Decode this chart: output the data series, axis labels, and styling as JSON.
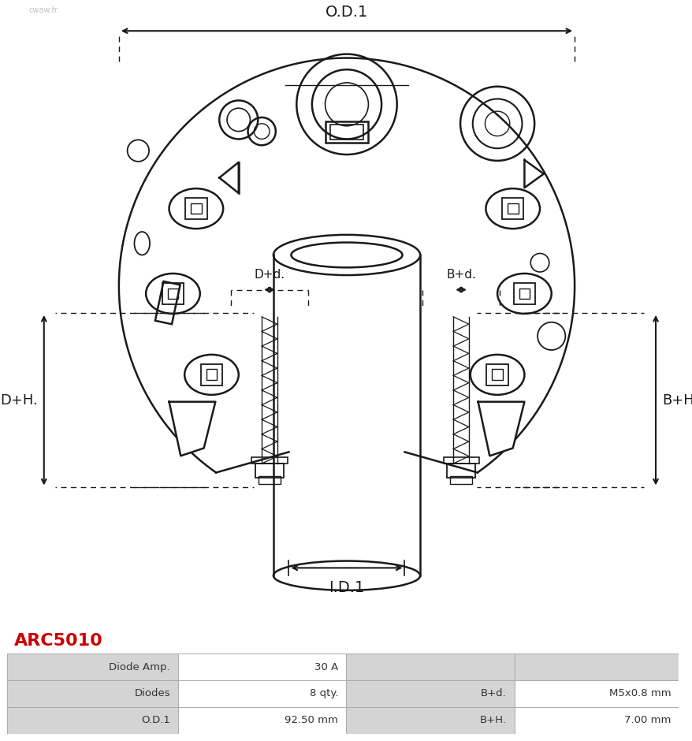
{
  "title": "ARC5010",
  "title_color": "#CC0000",
  "bg_color": "#ffffff",
  "table_data": [
    [
      "O.D.1",
      "92.50 mm",
      "B+H.",
      "7.00 mm"
    ],
    [
      "Diodes",
      "8 qty.",
      "B+d.",
      "M5x0.8 mm"
    ],
    [
      "Diode Amp.",
      "30 A",
      "",
      ""
    ]
  ],
  "dim_label_OD1": "O.D.1",
  "dim_label_ID1": "I.D.1",
  "dim_label_BH": "B+H.",
  "dim_label_BD": "B+d.",
  "dim_label_DH": "D+H.",
  "dim_label_Dd": "D+d.",
  "drawing_color": "#1a1a1a",
  "watermark": "cwaw.fr"
}
